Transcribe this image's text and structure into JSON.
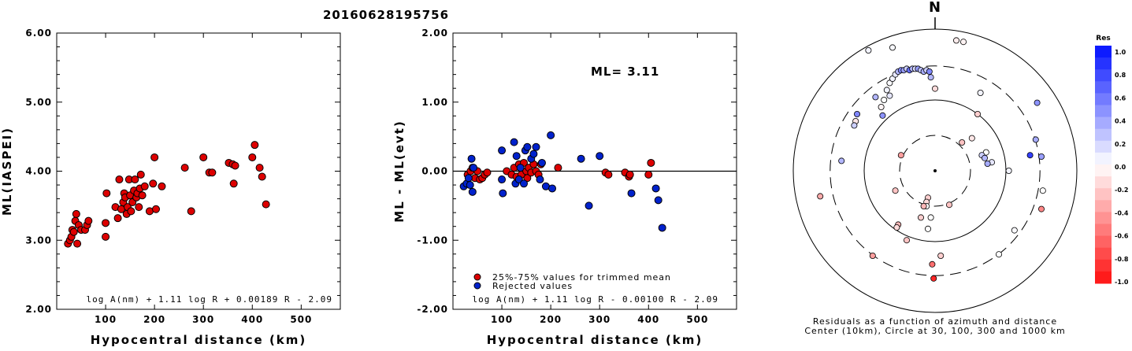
{
  "title": "20160628195756",
  "chart_data": [
    {
      "type": "scatter",
      "ylabel": "ML(IASPEI)",
      "xlabel": "Hypocentral distance (km)",
      "xlim": [
        0,
        580
      ],
      "ylim": [
        2.0,
        6.0
      ],
      "x_ticks": [
        "100",
        "200",
        "300",
        "400",
        "500"
      ],
      "y_ticks": [
        "2.00",
        "3.00",
        "4.00",
        "5.00",
        "6.00"
      ],
      "formula": "log A(nm) + 1.11 log R + 0.00189 R - 2.09",
      "color": "#dd0000",
      "points": [
        [
          23,
          2.95
        ],
        [
          27,
          3.0
        ],
        [
          30,
          3.05
        ],
        [
          32,
          3.15
        ],
        [
          35,
          3.12
        ],
        [
          38,
          3.28
        ],
        [
          40,
          3.38
        ],
        [
          42,
          2.95
        ],
        [
          45,
          3.22
        ],
        [
          50,
          3.15
        ],
        [
          58,
          3.15
        ],
        [
          62,
          3.22
        ],
        [
          65,
          3.28
        ],
        [
          100,
          3.05
        ],
        [
          100,
          3.25
        ],
        [
          102,
          3.68
        ],
        [
          120,
          3.48
        ],
        [
          125,
          3.32
        ],
        [
          128,
          3.88
        ],
        [
          132,
          3.45
        ],
        [
          136,
          3.55
        ],
        [
          138,
          3.68
        ],
        [
          140,
          3.62
        ],
        [
          143,
          3.38
        ],
        [
          145,
          3.48
        ],
        [
          148,
          3.88
        ],
        [
          150,
          3.65
        ],
        [
          152,
          3.42
        ],
        [
          155,
          3.55
        ],
        [
          158,
          3.72
        ],
        [
          160,
          3.88
        ],
        [
          163,
          3.62
        ],
        [
          165,
          3.68
        ],
        [
          168,
          3.48
        ],
        [
          170,
          3.75
        ],
        [
          172,
          3.95
        ],
        [
          175,
          3.65
        ],
        [
          180,
          3.78
        ],
        [
          190,
          3.42
        ],
        [
          197,
          3.82
        ],
        [
          200,
          4.2
        ],
        [
          203,
          3.45
        ],
        [
          215,
          3.78
        ],
        [
          262,
          4.05
        ],
        [
          275,
          3.42
        ],
        [
          300,
          4.2
        ],
        [
          312,
          3.98
        ],
        [
          318,
          3.98
        ],
        [
          352,
          4.12
        ],
        [
          360,
          4.1
        ],
        [
          362,
          3.82
        ],
        [
          365,
          4.08
        ],
        [
          400,
          4.2
        ],
        [
          405,
          4.38
        ],
        [
          415,
          4.05
        ],
        [
          420,
          3.92
        ],
        [
          428,
          3.52
        ]
      ]
    },
    {
      "type": "scatter",
      "ylabel": "ML - ML(evt)",
      "xlabel": "Hypocentral distance (km)",
      "xlim": [
        0,
        580
      ],
      "ylim": [
        -2.0,
        2.0
      ],
      "x_ticks": [
        "100",
        "200",
        "300",
        "400",
        "500"
      ],
      "y_ticks": [
        "-2.00",
        "-1.00",
        "0.00",
        "1.00",
        "2.00"
      ],
      "ml_label": "ML=",
      "ml_value": "3.11",
      "formula": "log A(nm) + 1.11 log R - 0.00100 R - 2.09",
      "legend": [
        {
          "label": "25%-75% values for trimmed mean",
          "color": "#dd0000"
        },
        {
          "label": "Rejected values",
          "color": "#0022cc"
        }
      ],
      "series": [
        {
          "name": "25%-75% values for trimmed mean",
          "color": "#dd0000",
          "points": [
            [
              30,
              -0.05
            ],
            [
              36,
              0.0
            ],
            [
              40,
              0.05
            ],
            [
              45,
              -0.1
            ],
            [
              50,
              0.0
            ],
            [
              55,
              -0.12
            ],
            [
              60,
              -0.1
            ],
            [
              65,
              -0.05
            ],
            [
              70,
              -0.02
            ],
            [
              110,
              0.0
            ],
            [
              120,
              -0.05
            ],
            [
              125,
              0.05
            ],
            [
              130,
              -0.08
            ],
            [
              135,
              0.1
            ],
            [
              140,
              -0.05
            ],
            [
              145,
              0.12
            ],
            [
              150,
              0.0
            ],
            [
              152,
              -0.1
            ],
            [
              155,
              0.05
            ],
            [
              160,
              -0.02
            ],
            [
              165,
              0.1
            ],
            [
              170,
              0.0
            ],
            [
              175,
              -0.05
            ],
            [
              180,
              0.1
            ],
            [
              215,
              0.05
            ],
            [
              312,
              -0.02
            ],
            [
              318,
              -0.05
            ],
            [
              352,
              -0.02
            ],
            [
              360,
              -0.08
            ],
            [
              362,
              -0.05
            ],
            [
              400,
              -0.05
            ],
            [
              405,
              0.12
            ]
          ]
        },
        {
          "name": "Rejected values",
          "color": "#0022cc",
          "points": [
            [
              22,
              -0.22
            ],
            [
              28,
              -0.18
            ],
            [
              32,
              -0.1
            ],
            [
              35,
              -0.2
            ],
            [
              38,
              0.18
            ],
            [
              40,
              -0.3
            ],
            [
              42,
              0.05
            ],
            [
              100,
              0.3
            ],
            [
              100,
              -0.12
            ],
            [
              102,
              -0.32
            ],
            [
              125,
              0.42
            ],
            [
              128,
              -0.18
            ],
            [
              130,
              0.22
            ],
            [
              135,
              -0.12
            ],
            [
              138,
              0.05
            ],
            [
              145,
              -0.18
            ],
            [
              148,
              0.3
            ],
            [
              152,
              0.35
            ],
            [
              160,
              0.18
            ],
            [
              165,
              0.25
            ],
            [
              170,
              0.35
            ],
            [
              178,
              -0.12
            ],
            [
              182,
              0.12
            ],
            [
              190,
              -0.22
            ],
            [
              200,
              0.52
            ],
            [
              203,
              -0.25
            ],
            [
              262,
              0.18
            ],
            [
              278,
              -0.5
            ],
            [
              300,
              0.22
            ],
            [
              365,
              -0.32
            ],
            [
              415,
              -0.25
            ],
            [
              420,
              -0.42
            ],
            [
              428,
              -0.82
            ]
          ]
        }
      ]
    },
    {
      "type": "scatter",
      "subtype": "polar residual map",
      "north_label": "N",
      "caption_line1": "Residuals as a function of azimuth and distance",
      "caption_line2": "Center (10km), Circle at 30, 100, 300 and 1000 km",
      "colorbar_title": "Res",
      "colorbar_ticks": [
        "1.0",
        "0.8",
        "0.6",
        "0.4",
        "0.2",
        "0.0",
        "-0.2",
        "-0.4",
        "-0.6",
        "-0.8",
        "-1.0"
      ],
      "stations": [
        {
          "dx": -0.47,
          "dy": -0.85,
          "res": 0.05
        },
        {
          "dx": -0.3,
          "dy": -0.87,
          "res": 0.03
        },
        {
          "dx": 0.15,
          "dy": -0.92,
          "res": -0.08
        },
        {
          "dx": 0.2,
          "dy": -0.91,
          "res": -0.05
        },
        {
          "dx": -0.32,
          "dy": -0.62,
          "res": 0.02
        },
        {
          "dx": -0.3,
          "dy": -0.65,
          "res": 0.05
        },
        {
          "dx": -0.28,
          "dy": -0.68,
          "res": 0.1
        },
        {
          "dx": -0.26,
          "dy": -0.7,
          "res": 0.3
        },
        {
          "dx": -0.24,
          "dy": -0.71,
          "res": 0.5
        },
        {
          "dx": -0.22,
          "dy": -0.71,
          "res": 0.4
        },
        {
          "dx": -0.2,
          "dy": -0.72,
          "res": 0.2
        },
        {
          "dx": -0.18,
          "dy": -0.71,
          "res": 0.6
        },
        {
          "dx": -0.16,
          "dy": -0.72,
          "res": 0.3
        },
        {
          "dx": -0.14,
          "dy": -0.72,
          "res": 0.15
        },
        {
          "dx": -0.12,
          "dy": -0.72,
          "res": 0.4
        },
        {
          "dx": -0.1,
          "dy": -0.71,
          "res": 0.25
        },
        {
          "dx": -0.08,
          "dy": -0.7,
          "res": 0.35
        },
        {
          "dx": -0.06,
          "dy": -0.71,
          "res": 0.2
        },
        {
          "dx": -0.04,
          "dy": -0.7,
          "res": 0.5
        },
        {
          "dx": -0.03,
          "dy": -0.66,
          "res": 0.3
        },
        {
          "dx": -0.34,
          "dy": -0.57,
          "res": 0.05
        },
        {
          "dx": -0.36,
          "dy": -0.5,
          "res": 0.0
        },
        {
          "dx": -0.42,
          "dy": -0.52,
          "res": 0.3
        },
        {
          "dx": -0.32,
          "dy": -0.53,
          "res": 0.1
        },
        {
          "dx": -0.38,
          "dy": -0.45,
          "res": -0.05
        },
        {
          "dx": 0.0,
          "dy": -0.58,
          "res": -0.15
        },
        {
          "dx": 0.32,
          "dy": -0.55,
          "res": 0.05
        },
        {
          "dx": -0.55,
          "dy": -0.4,
          "res": 0.5
        },
        {
          "dx": -0.56,
          "dy": -0.35,
          "res": -0.1
        },
        {
          "dx": -0.57,
          "dy": -0.32,
          "res": 0.2
        },
        {
          "dx": -0.37,
          "dy": -0.39,
          "res": 0.45
        },
        {
          "dx": 0.3,
          "dy": -0.4,
          "res": -0.2
        },
        {
          "dx": 0.72,
          "dy": -0.48,
          "res": 0.45
        },
        {
          "dx": 0.71,
          "dy": -0.22,
          "res": 0.35
        },
        {
          "dx": 0.19,
          "dy": -0.2,
          "res": -0.25
        },
        {
          "dx": 0.26,
          "dy": -0.23,
          "res": -0.1
        },
        {
          "dx": 0.36,
          "dy": -0.13,
          "res": 0.0
        },
        {
          "dx": 0.33,
          "dy": -0.11,
          "res": 0.2
        },
        {
          "dx": 0.35,
          "dy": -0.09,
          "res": 0.3
        },
        {
          "dx": 0.4,
          "dy": -0.06,
          "res": 0.1
        },
        {
          "dx": 0.37,
          "dy": -0.05,
          "res": 0.35
        },
        {
          "dx": 0.67,
          "dy": -0.11,
          "res": 0.8
        },
        {
          "dx": 0.75,
          "dy": -0.1,
          "res": 0.4
        },
        {
          "dx": -0.66,
          "dy": -0.07,
          "res": 0.3
        },
        {
          "dx": -0.24,
          "dy": -0.11,
          "res": -0.4
        },
        {
          "dx": 0.52,
          "dy": 0.0,
          "res": 0.05
        },
        {
          "dx": 0.76,
          "dy": 0.14,
          "res": 0.0
        },
        {
          "dx": -0.81,
          "dy": 0.18,
          "res": -0.35
        },
        {
          "dx": -0.28,
          "dy": 0.14,
          "res": -0.25
        },
        {
          "dx": -0.05,
          "dy": 0.19,
          "res": -0.2
        },
        {
          "dx": -0.06,
          "dy": 0.22,
          "res": -0.15
        },
        {
          "dx": -0.06,
          "dy": 0.25,
          "res": 0.0
        },
        {
          "dx": -0.08,
          "dy": 0.25,
          "res": -0.3
        },
        {
          "dx": 0.1,
          "dy": 0.24,
          "res": -0.25
        },
        {
          "dx": 0.75,
          "dy": 0.27,
          "res": -0.5
        },
        {
          "dx": -0.1,
          "dy": 0.33,
          "res": -0.2
        },
        {
          "dx": -0.03,
          "dy": 0.33,
          "res": 0.0
        },
        {
          "dx": -0.26,
          "dy": 0.38,
          "res": -0.3
        },
        {
          "dx": -0.27,
          "dy": 0.4,
          "res": -0.15
        },
        {
          "dx": -0.05,
          "dy": 0.41,
          "res": 0.0
        },
        {
          "dx": 0.56,
          "dy": 0.42,
          "res": 0.02
        },
        {
          "dx": -0.2,
          "dy": 0.49,
          "res": -0.25
        },
        {
          "dx": 0.45,
          "dy": 0.59,
          "res": 0.0
        },
        {
          "dx": -0.44,
          "dy": 0.6,
          "res": -0.4
        },
        {
          "dx": 0.04,
          "dy": 0.6,
          "res": -0.2
        },
        {
          "dx": -0.02,
          "dy": 0.66,
          "res": -0.6
        },
        {
          "dx": -0.01,
          "dy": 0.76,
          "res": -0.9
        }
      ]
    }
  ]
}
